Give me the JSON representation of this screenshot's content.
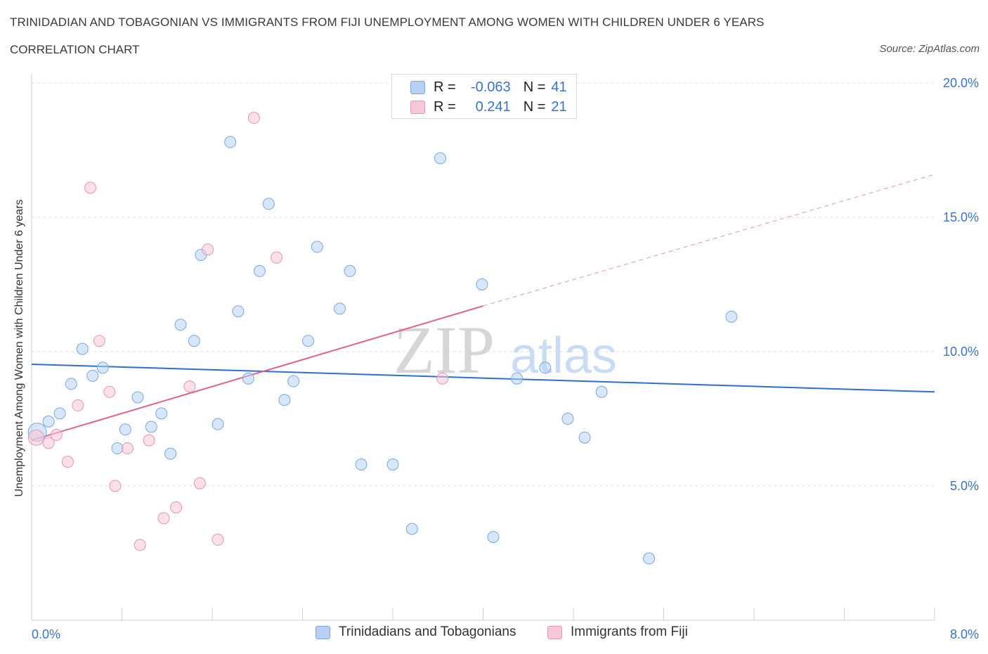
{
  "header": {
    "title": "TRINIDADIAN AND TOBAGONIAN VS IMMIGRANTS FROM FIJI UNEMPLOYMENT AMONG WOMEN WITH CHILDREN UNDER 6 YEARS",
    "subtitle": "CORRELATION CHART",
    "source": "Source: ZipAtlas.com"
  },
  "legend": {
    "r_label": "R =",
    "n_label": "N =",
    "series1": {
      "r": "-0.063",
      "n": "41"
    },
    "series2": {
      "r": "0.241",
      "n": "21"
    }
  },
  "colors": {
    "series1_fill": "#b6d1f3",
    "series1_stroke": "#7aa7df",
    "series1_line": "#2f6fcf",
    "series2_fill": "#f8c7d7",
    "series2_stroke": "#e895b0",
    "series2_line": "#e0608c",
    "tick_label": "#3b73c8"
  },
  "watermark": {
    "zip": "ZIP",
    "atlas": "atlas"
  },
  "chart_data": {
    "type": "scatter",
    "title": "TRINIDADIAN AND TOBAGONIAN VS IMMIGRANTS FROM FIJI UNEMPLOYMENT AMONG WOMEN WITH CHILDREN UNDER 6 YEARS",
    "ylabel": "Unemployment Among Women with Children Under 6 years",
    "xlabel": "",
    "xlim": [
      0,
      8
    ],
    "ylim": [
      0,
      20
    ],
    "x_tick_labels": [
      "0.0%",
      "8.0%"
    ],
    "y_ticks": [
      5,
      10,
      15,
      20
    ],
    "y_tick_labels": [
      "5.0%",
      "10.0%",
      "15.0%",
      "20.0%"
    ],
    "grid": true,
    "legend_position": "bottom",
    "series": [
      {
        "name": "Trinidadians and Tobagonians",
        "points": [
          [
            0.05,
            7.0
          ],
          [
            0.15,
            7.4
          ],
          [
            0.25,
            7.7
          ],
          [
            0.35,
            8.8
          ],
          [
            0.45,
            10.1
          ],
          [
            0.54,
            9.1
          ],
          [
            0.63,
            9.4
          ],
          [
            0.76,
            6.4
          ],
          [
            0.83,
            7.1
          ],
          [
            0.94,
            8.3
          ],
          [
            1.06,
            7.2
          ],
          [
            1.15,
            7.7
          ],
          [
            1.23,
            6.2
          ],
          [
            1.32,
            11.0
          ],
          [
            1.44,
            10.4
          ],
          [
            1.5,
            13.6
          ],
          [
            1.65,
            7.3
          ],
          [
            1.76,
            17.8
          ],
          [
            1.83,
            11.5
          ],
          [
            1.92,
            9.0
          ],
          [
            2.02,
            13.0
          ],
          [
            2.1,
            15.5
          ],
          [
            2.24,
            8.2
          ],
          [
            2.32,
            8.9
          ],
          [
            2.45,
            10.4
          ],
          [
            2.53,
            13.9
          ],
          [
            2.73,
            11.6
          ],
          [
            2.82,
            13.0
          ],
          [
            2.92,
            5.8
          ],
          [
            3.2,
            5.8
          ],
          [
            3.37,
            3.4
          ],
          [
            3.62,
            17.2
          ],
          [
            3.99,
            12.5
          ],
          [
            4.09,
            3.1
          ],
          [
            4.3,
            9.0
          ],
          [
            4.55,
            9.4
          ],
          [
            4.75,
            7.5
          ],
          [
            4.9,
            6.8
          ],
          [
            5.05,
            8.5
          ],
          [
            5.47,
            2.3
          ],
          [
            6.2,
            11.3
          ]
        ],
        "trend": {
          "x": [
            0.0,
            8.0
          ],
          "y": [
            9.53,
            8.5
          ]
        }
      },
      {
        "name": "Immigrants from Fiji",
        "points": [
          [
            0.04,
            6.8
          ],
          [
            0.15,
            6.6
          ],
          [
            0.22,
            6.9
          ],
          [
            0.32,
            5.9
          ],
          [
            0.41,
            8.0
          ],
          [
            0.52,
            16.1
          ],
          [
            0.6,
            10.4
          ],
          [
            0.69,
            8.5
          ],
          [
            0.74,
            5.0
          ],
          [
            0.85,
            6.4
          ],
          [
            0.96,
            2.8
          ],
          [
            1.04,
            6.7
          ],
          [
            1.17,
            3.8
          ],
          [
            1.28,
            4.2
          ],
          [
            1.4,
            8.7
          ],
          [
            1.49,
            5.1
          ],
          [
            1.56,
            13.8
          ],
          [
            1.65,
            3.0
          ],
          [
            1.97,
            18.7
          ],
          [
            2.17,
            13.5
          ],
          [
            3.64,
            9.0
          ]
        ],
        "trend": {
          "x": [
            0.0,
            4.0
          ],
          "y": [
            6.7,
            11.7
          ]
        },
        "trend_extension": {
          "x": [
            4.0,
            8.0
          ],
          "y": [
            11.7,
            16.6
          ]
        }
      }
    ]
  }
}
